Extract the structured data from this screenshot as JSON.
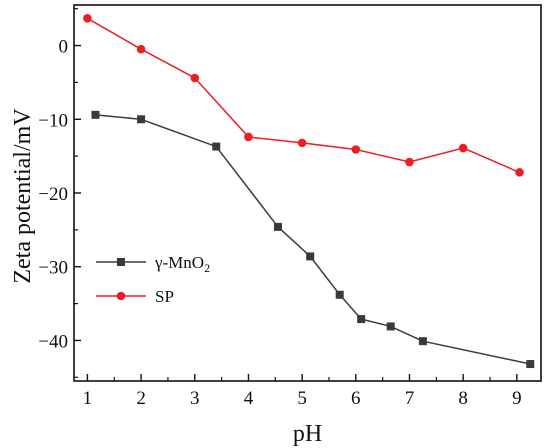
{
  "chart_data": {
    "type": "line",
    "title": "",
    "xlabel": "pH",
    "ylabel": "Zeta potential/mV",
    "xlim": [
      0.75,
      9.45
    ],
    "ylim": [
      -45.5,
      5.5
    ],
    "xticks": [
      1,
      2,
      3,
      4,
      5,
      6,
      7,
      8,
      9
    ],
    "yticks": [
      0,
      -10,
      -20,
      -30,
      -40
    ],
    "xtick_labels": [
      "1",
      "2",
      "3",
      "4",
      "5",
      "6",
      "7",
      "8",
      "9"
    ],
    "ytick_labels": [
      "0",
      "−10",
      "−20",
      "−30",
      "−40"
    ],
    "grid": false,
    "legend_position": "center-left",
    "series": [
      {
        "name": "γ-MnO",
        "name_subscript": "2",
        "color": "#3a3a3a",
        "marker": "square",
        "x": [
          1.15,
          2.0,
          3.4,
          4.55,
          5.15,
          5.7,
          6.1,
          6.65,
          7.25,
          9.25
        ],
        "y": [
          -9.4,
          -10.0,
          -13.7,
          -24.6,
          -28.6,
          -33.8,
          -37.1,
          -38.1,
          -40.1,
          -43.2
        ]
      },
      {
        "name": "SP",
        "color": "#ee1c25",
        "marker": "circle",
        "x": [
          1.0,
          2.0,
          3.0,
          4.0,
          5.0,
          6.0,
          7.0,
          8.0,
          9.05
        ],
        "y": [
          3.7,
          -0.5,
          -4.4,
          -12.4,
          -13.2,
          -14.1,
          -15.8,
          -13.9,
          -17.2
        ]
      }
    ]
  }
}
